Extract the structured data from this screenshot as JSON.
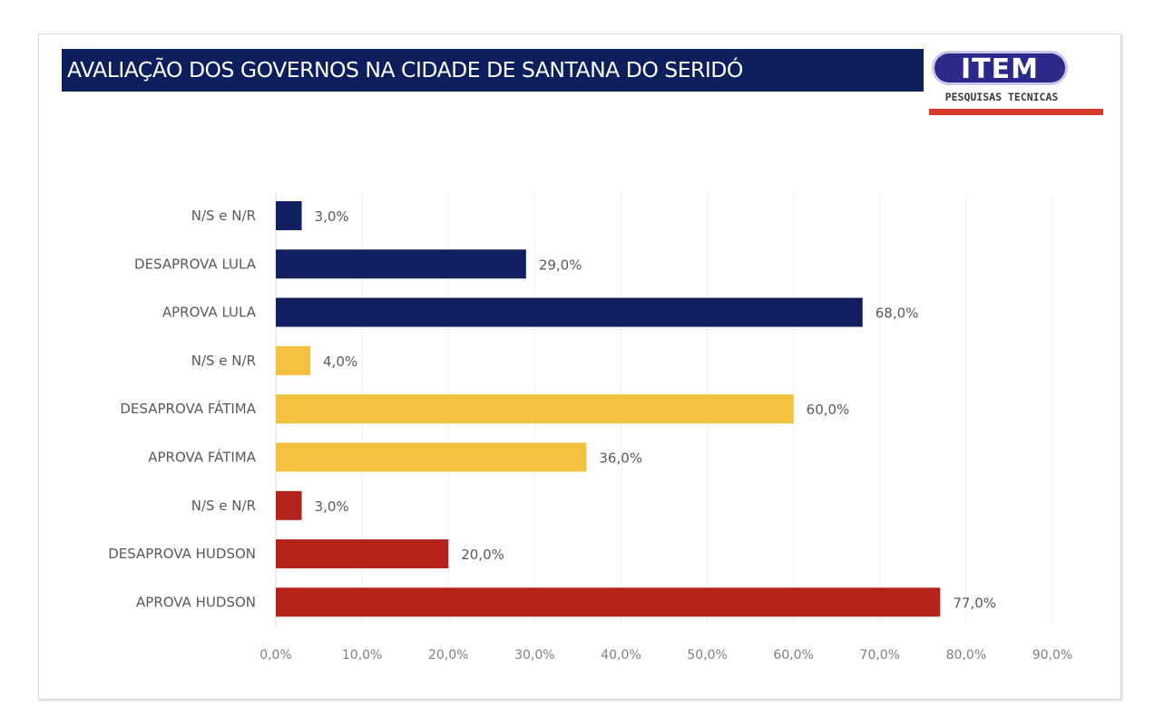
{
  "chart_data": {
    "type": "bar",
    "orientation": "horizontal",
    "title": "AVALIAÇÃO DOS GOVERNOS NA CIDADE DE SANTANA DO SERIDÓ",
    "xlabel": "",
    "ylabel": "",
    "xlim": [
      0,
      90
    ],
    "grid": true,
    "categories": [
      "N/S e N/R",
      "DESAPROVA LULA",
      "APROVA LULA",
      "N/S e N/R",
      "DESAPROVA FÁTIMA",
      "APROVA FÁTIMA",
      "N/S e N/R",
      "DESAPROVA HUDSON",
      "APROVA HUDSON"
    ],
    "values": [
      3.0,
      29.0,
      68.0,
      4.0,
      60.0,
      36.0,
      3.0,
      20.0,
      77.0
    ],
    "value_labels": [
      "3,0%",
      "29,0%",
      "68,0%",
      "4,0%",
      "60,0%",
      "36,0%",
      "3,0%",
      "20,0%",
      "77,0%"
    ],
    "groups": [
      "lula",
      "lula",
      "lula",
      "fatima",
      "fatima",
      "fatima",
      "hudson",
      "hudson",
      "hudson"
    ],
    "group_colors": {
      "lula": "#0f1f5f",
      "fatima": "#f2c13d",
      "hudson": "#b3231a"
    },
    "x_ticks": [
      0,
      10,
      20,
      30,
      40,
      50,
      60,
      70,
      80,
      90
    ],
    "x_tick_labels": [
      "0,0%",
      "10,0%",
      "20,0%",
      "30,0%",
      "40,0%",
      "50,0%",
      "60,0%",
      "70,0%",
      "80,0%",
      "90,0%"
    ]
  },
  "logo": {
    "name": "ITEM",
    "subtitle": "PESQUISAS TECNICAS",
    "colors": {
      "primary": "#2b2a8a",
      "accent": "#d63a2a"
    }
  },
  "colors": {
    "title_bg": "#0d1e5c",
    "title_text": "#ffffff"
  }
}
